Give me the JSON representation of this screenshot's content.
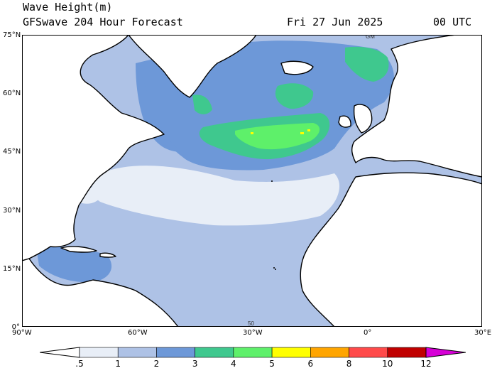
{
  "header": {
    "title_line1": "Wave Height(m)",
    "title_line2": "GFSwave 204 Hour Forecast",
    "date": "Fri 27 Jun 2025",
    "time": "00 UTC"
  },
  "map": {
    "region": "North Atlantic",
    "lat_ticks": [
      "75°N",
      "60°N",
      "45°N",
      "30°N",
      "15°N",
      "0°"
    ],
    "lon_ticks": [
      "90°W",
      "60°W",
      "30°W",
      "0°",
      "30°E"
    ],
    "annotations": [
      "GM",
      "50"
    ],
    "land_color": "#ffffff",
    "coast_color": "#000000"
  },
  "legend": {
    "labels": [
      ".5",
      "1",
      "2",
      "3",
      "4",
      "5",
      "6",
      "8",
      "10",
      "12"
    ],
    "colors": [
      "#ffffff",
      "#e8eef7",
      "#aec2e6",
      "#6d98d8",
      "#3fc88e",
      "#5ef06a",
      "#ffff00",
      "#ffa500",
      "#ff4a4a",
      "#c00000",
      "#d600d6"
    ]
  }
}
